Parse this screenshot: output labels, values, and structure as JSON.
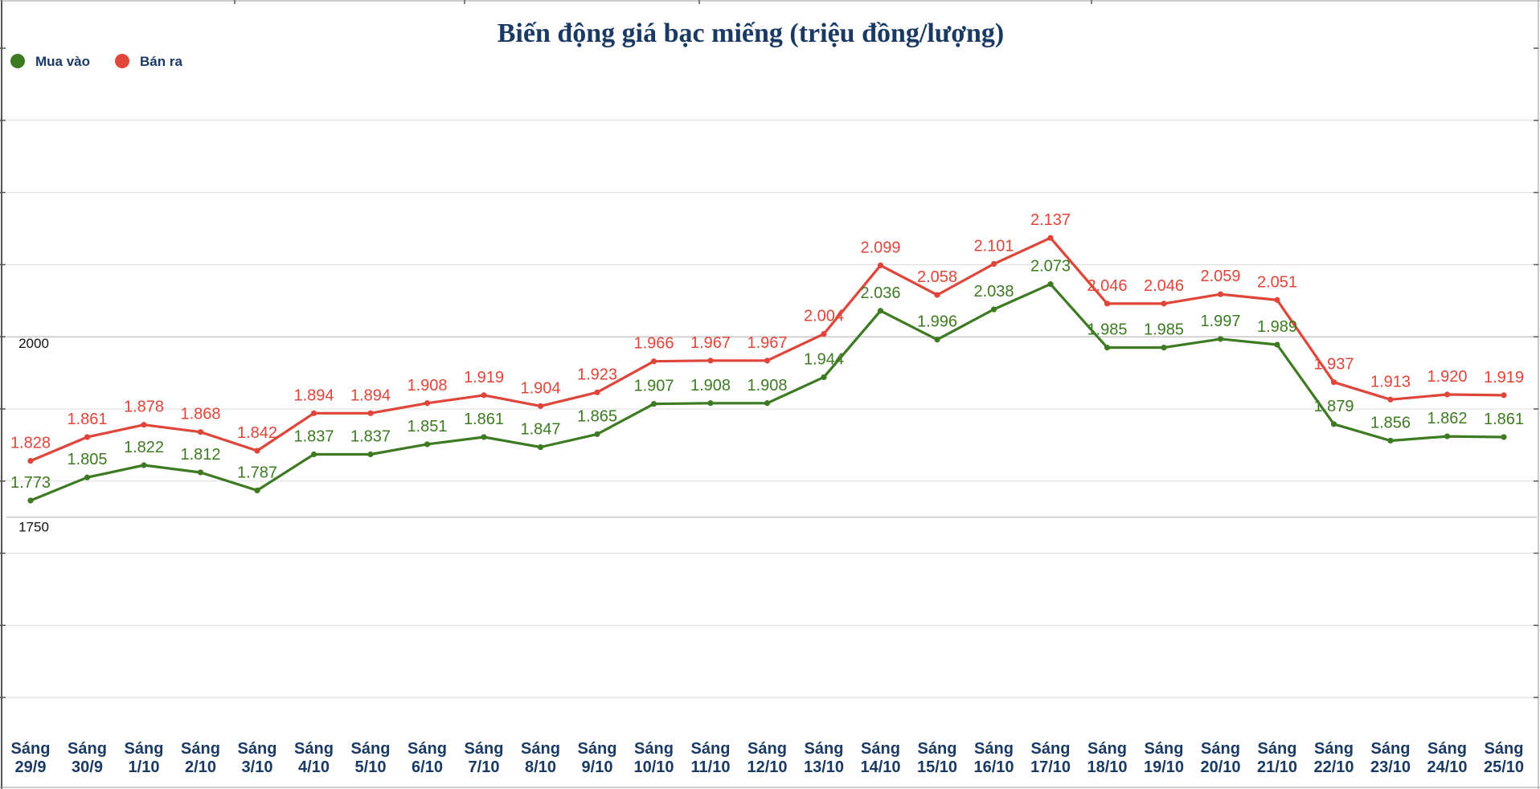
{
  "chart_data": {
    "type": "line",
    "title": "Biến động giá bạc miếng (triệu đồng/lượng)",
    "xlabel": "",
    "ylabel": "",
    "ylim": [
      1450,
      2400
    ],
    "y_tick_labels": [
      {
        "value": 2000,
        "label": "2000"
      },
      {
        "value": 1750,
        "label": "1750"
      }
    ],
    "grid": true,
    "legend_position": "top-left",
    "categories": [
      [
        "Sáng",
        "29/9"
      ],
      [
        "Sáng",
        "30/9"
      ],
      [
        "Sáng",
        "1/10"
      ],
      [
        "Sáng",
        "2/10"
      ],
      [
        "Sáng",
        "3/10"
      ],
      [
        "Sáng",
        "4/10"
      ],
      [
        "Sáng",
        "5/10"
      ],
      [
        "Sáng",
        "6/10"
      ],
      [
        "Sáng",
        "7/10"
      ],
      [
        "Sáng",
        "8/10"
      ],
      [
        "Sáng",
        "9/10"
      ],
      [
        "Sáng",
        "10/10"
      ],
      [
        "Sáng",
        "11/10"
      ],
      [
        "Sáng",
        "12/10"
      ],
      [
        "Sáng",
        "13/10"
      ],
      [
        "Sáng",
        "14/10"
      ],
      [
        "Sáng",
        "15/10"
      ],
      [
        "Sáng",
        "16/10"
      ],
      [
        "Sáng",
        "17/10"
      ],
      [
        "Sáng",
        "18/10"
      ],
      [
        "Sáng",
        "19/10"
      ],
      [
        "Sáng",
        "20/10"
      ],
      [
        "Sáng",
        "21/10"
      ],
      [
        "Sáng",
        "22/10"
      ],
      [
        "Sáng",
        "23/10"
      ],
      [
        "Sáng",
        "24/10"
      ],
      [
        "Sáng",
        "25/10"
      ]
    ],
    "series": [
      {
        "name": "Mua vào",
        "color": "#3d7a22",
        "values": [
          1773,
          1805,
          1822,
          1812,
          1787,
          1837,
          1837,
          1851,
          1861,
          1847,
          1865,
          1907,
          1908,
          1908,
          1944,
          2036,
          1996,
          2038,
          2073,
          1985,
          1985,
          1997,
          1989,
          1879,
          1856,
          1862,
          1861
        ],
        "labels": [
          "1.773",
          "1.805",
          "1.822",
          "1.812",
          "1.787",
          "1.837",
          "1.837",
          "1.851",
          "1.861",
          "1.847",
          "1.865",
          "1.907",
          "1.908",
          "1.908",
          "1.944",
          "2.036",
          "1.996",
          "2.038",
          "2.073",
          "1.985",
          "1.985",
          "1.997",
          "1.989",
          "1.879",
          "1.856",
          "1.862",
          "1.861"
        ]
      },
      {
        "name": "Bán ra",
        "color": "#e0453a",
        "values": [
          1828,
          1861,
          1878,
          1868,
          1842,
          1894,
          1894,
          1908,
          1919,
          1904,
          1923,
          1966,
          1967,
          1967,
          2004,
          2099,
          2058,
          2101,
          2137,
          2046,
          2046,
          2059,
          2051,
          1937,
          1913,
          1920,
          1919
        ],
        "labels": [
          "1.828",
          "1.861",
          "1.878",
          "1.868",
          "1.842",
          "1.894",
          "1.894",
          "1.908",
          "1.919",
          "1.904",
          "1.923",
          "1.966",
          "1.967",
          "1.967",
          "2.004",
          "2.099",
          "2.058",
          "2.101",
          "2.137",
          "2.046",
          "2.046",
          "2.059",
          "2.051",
          "1.937",
          "1.913",
          "1.920",
          "1.919"
        ]
      }
    ],
    "colors": {
      "title": "#1a3a63",
      "legend_text": "#1a3a63",
      "x_tick_text": "#1a3a63",
      "y_tick_text": "#111111",
      "grid": "#dcdcdc",
      "axis": "#555555"
    }
  }
}
